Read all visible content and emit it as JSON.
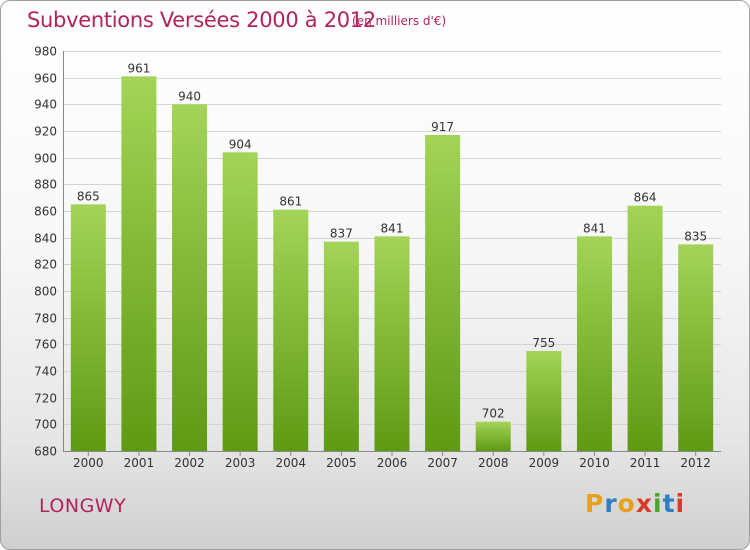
{
  "header": {
    "title": "Subventions Versées 2000 à 2012",
    "subtitle": "(en milliers d'€)"
  },
  "footer": {
    "city": "LONGWY",
    "logo": [
      "P",
      "r",
      "o",
      "x",
      "i",
      "t",
      "i"
    ]
  },
  "colors": {
    "title": "#b2235d",
    "bar_top": "#a3d457",
    "bar_bottom": "#5f9a14",
    "logo": [
      "#e8a11b",
      "#2e7fc1",
      "#e8a11b",
      "#d83b2a",
      "#4aa52e",
      "#2e7fc1",
      "#d83b2a"
    ]
  },
  "chart_data": {
    "type": "bar",
    "title": "Subventions Versées 2000 à 2012",
    "categories": [
      "2000",
      "2001",
      "2002",
      "2003",
      "2004",
      "2005",
      "2006",
      "2007",
      "2008",
      "2009",
      "2010",
      "2011",
      "2012"
    ],
    "values": [
      865,
      961,
      940,
      904,
      861,
      837,
      841,
      917,
      702,
      755,
      841,
      864,
      835
    ],
    "ylim": [
      680,
      980
    ],
    "yticks": [
      680,
      700,
      720,
      740,
      760,
      780,
      800,
      820,
      840,
      860,
      880,
      900,
      920,
      940,
      960,
      980
    ],
    "grid": true,
    "data_labels": true
  }
}
